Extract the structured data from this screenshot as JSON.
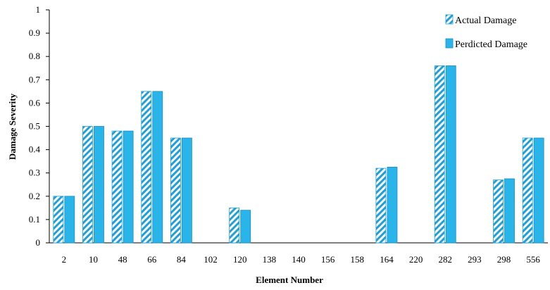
{
  "chart_data": {
    "type": "bar",
    "xlabel": "Element Number",
    "ylabel": "Damage Severity",
    "ylim": [
      0,
      1
    ],
    "yticks": [
      "0",
      "0.1",
      "0.2",
      "0.3",
      "0.4",
      "0.5",
      "0.6",
      "0.7",
      "0.8",
      "0.9",
      "1"
    ],
    "categories": [
      "2",
      "10",
      "48",
      "66",
      "84",
      "102",
      "120",
      "138",
      "140",
      "156",
      "158",
      "164",
      "220",
      "282",
      "293",
      "298",
      "556"
    ],
    "series": [
      {
        "name": "Actual Damage",
        "pattern": "diagonal-hatch",
        "color": "#1E9FDC",
        "values": [
          0.2,
          0.5,
          0.48,
          0.65,
          0.45,
          0,
          0.15,
          0,
          0,
          0,
          0,
          0.32,
          0,
          0.76,
          0,
          0.27,
          0.45
        ]
      },
      {
        "name": "Perdicted Damage",
        "pattern": "solid",
        "color": "#29B5EA",
        "values": [
          0.2,
          0.5,
          0.48,
          0.65,
          0.45,
          0,
          0.14,
          0,
          0,
          0,
          0,
          0.325,
          0,
          0.76,
          0,
          0.275,
          0.45
        ]
      }
    ],
    "grid": false,
    "legend_position": "top-right"
  }
}
